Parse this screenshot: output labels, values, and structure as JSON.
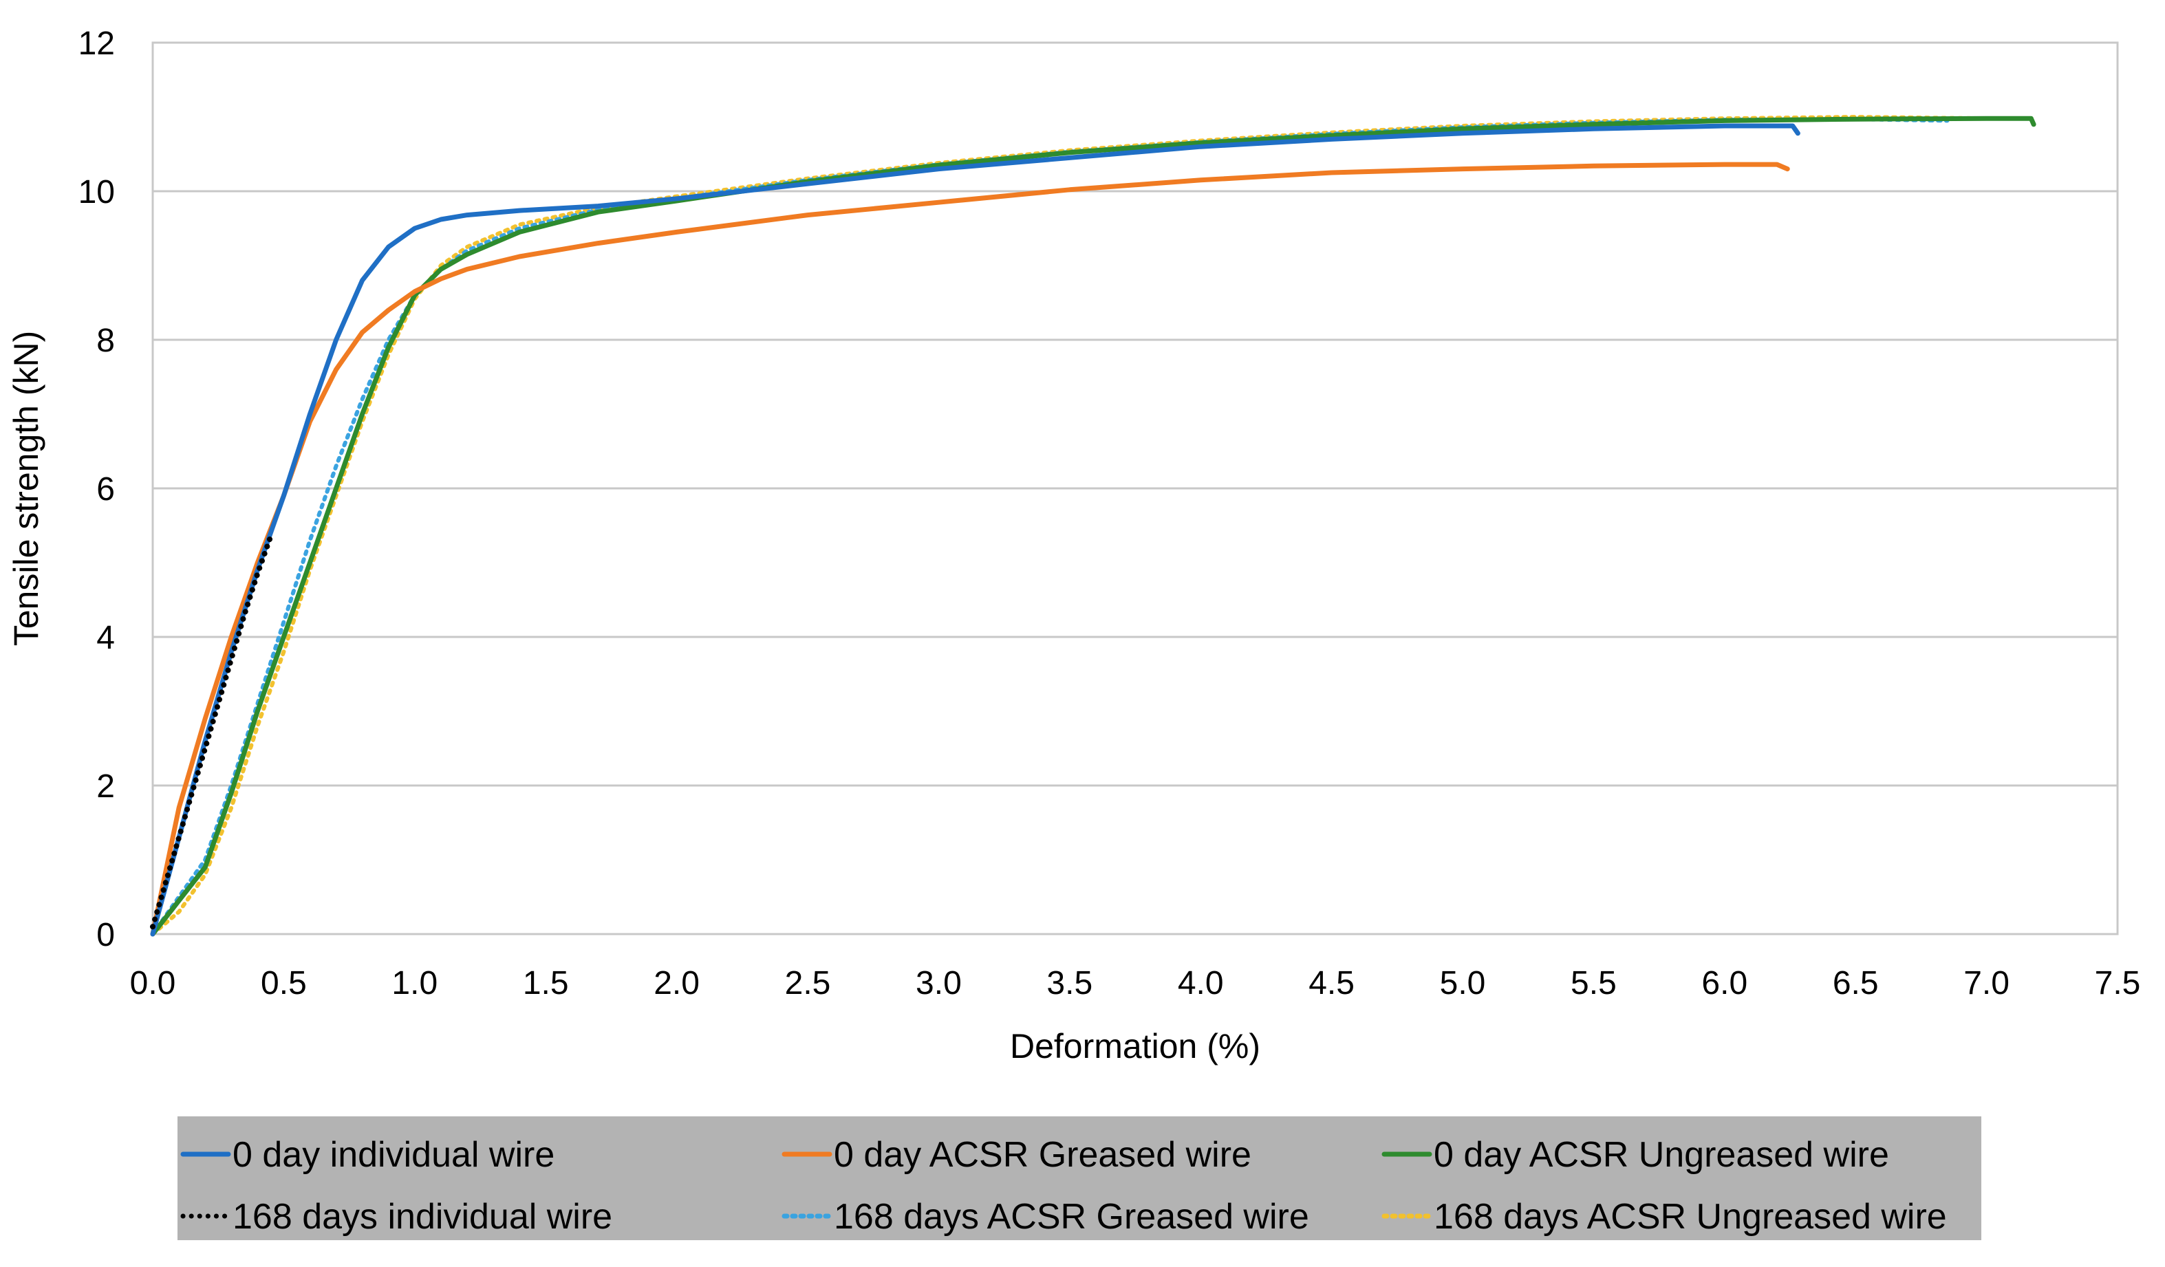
{
  "chart_data": {
    "type": "line",
    "title": "",
    "xlabel": "Deformation (%)",
    "ylabel": "Tensile strength (kN)",
    "xlim": [
      0,
      7.5
    ],
    "ylim": [
      0,
      12
    ],
    "xticks": [
      "0.0",
      "0.5",
      "1.0",
      "1.5",
      "2.0",
      "2.5",
      "3.0",
      "3.5",
      "4.0",
      "4.5",
      "5.0",
      "5.5",
      "6.0",
      "6.5",
      "7.0",
      "7.5"
    ],
    "yticks": [
      "0",
      "2",
      "4",
      "6",
      "8",
      "10",
      "12"
    ],
    "grid": "horizontal",
    "legend_position": "bottom",
    "series": [
      {
        "name": "0 day individual wire",
        "color": "#1f6fc5",
        "style": "solid",
        "x": [
          0,
          0.1,
          0.2,
          0.3,
          0.4,
          0.5,
          0.6,
          0.7,
          0.8,
          0.9,
          1.0,
          1.1,
          1.2,
          1.4,
          1.7,
          2.0,
          2.5,
          3.0,
          3.5,
          4.0,
          4.5,
          5.0,
          5.5,
          6.0,
          6.26,
          6.28
        ],
        "y": [
          0,
          1.3,
          2.6,
          3.8,
          4.9,
          5.9,
          7.0,
          8.0,
          8.8,
          9.25,
          9.5,
          9.62,
          9.68,
          9.74,
          9.8,
          9.9,
          10.1,
          10.3,
          10.45,
          10.6,
          10.7,
          10.78,
          10.84,
          10.88,
          10.88,
          10.78
        ]
      },
      {
        "name": "0 day ACSR Greased wire",
        "color": "#f07b22",
        "style": "solid",
        "x": [
          0,
          0.1,
          0.2,
          0.3,
          0.4,
          0.5,
          0.6,
          0.7,
          0.8,
          0.9,
          1.0,
          1.1,
          1.2,
          1.4,
          1.7,
          2.0,
          2.5,
          3.0,
          3.5,
          4.0,
          4.5,
          5.0,
          5.5,
          6.0,
          6.2,
          6.24
        ],
        "y": [
          0,
          1.7,
          2.9,
          4.0,
          5.0,
          5.9,
          6.9,
          7.6,
          8.1,
          8.4,
          8.65,
          8.82,
          8.95,
          9.12,
          9.3,
          9.45,
          9.68,
          9.85,
          10.02,
          10.15,
          10.25,
          10.3,
          10.34,
          10.36,
          10.36,
          10.3
        ]
      },
      {
        "name": "0 day ACSR Ungreased wire",
        "color": "#2e8b2e",
        "style": "solid",
        "x": [
          0,
          0.1,
          0.2,
          0.3,
          0.4,
          0.5,
          0.6,
          0.7,
          0.8,
          0.9,
          1.0,
          1.1,
          1.2,
          1.4,
          1.7,
          2.0,
          2.5,
          3.0,
          3.5,
          4.0,
          4.5,
          5.0,
          5.5,
          6.0,
          6.5,
          7.0,
          7.17,
          7.18
        ],
        "y": [
          0,
          0.45,
          0.9,
          1.9,
          3.0,
          4.0,
          5.0,
          6.0,
          7.0,
          7.9,
          8.6,
          8.95,
          9.15,
          9.45,
          9.72,
          9.87,
          10.13,
          10.35,
          10.52,
          10.65,
          10.75,
          10.84,
          10.9,
          10.95,
          10.97,
          10.98,
          10.98,
          10.9
        ]
      },
      {
        "name": "168 days individual wire",
        "color": "#000000",
        "style": "dotted",
        "x": [
          0,
          0.05,
          0.1,
          0.15,
          0.2,
          0.25,
          0.3,
          0.35,
          0.4,
          0.45
        ],
        "y": [
          0.1,
          0.7,
          1.3,
          1.9,
          2.5,
          3.1,
          3.7,
          4.3,
          4.85,
          5.35
        ]
      },
      {
        "name": "168 days ACSR Greased wire",
        "color": "#3aa3e0",
        "style": "dotted",
        "x": [
          0,
          0.1,
          0.2,
          0.3,
          0.4,
          0.5,
          0.6,
          0.7,
          0.8,
          0.9,
          1.0,
          1.1,
          1.2,
          1.4,
          1.7,
          2.0,
          2.5,
          3.0,
          3.5,
          4.0,
          4.5,
          5.0,
          5.5,
          6.0,
          6.5,
          6.85
        ],
        "y": [
          0,
          0.5,
          1.0,
          2.0,
          3.1,
          4.2,
          5.3,
          6.3,
          7.2,
          8.0,
          8.6,
          8.95,
          9.2,
          9.5,
          9.75,
          9.9,
          10.15,
          10.36,
          10.53,
          10.66,
          10.77,
          10.86,
          10.92,
          10.96,
          10.97,
          10.95
        ]
      },
      {
        "name": "168 days ACSR Ungreased wire",
        "color": "#f2c12e",
        "style": "dotted",
        "x": [
          0,
          0.1,
          0.2,
          0.3,
          0.4,
          0.5,
          0.6,
          0.7,
          0.8,
          0.9,
          1.0,
          1.1,
          1.2,
          1.4,
          1.7,
          2.0,
          2.5,
          3.0,
          3.5,
          4.0,
          4.5,
          5.0,
          5.5,
          6.0,
          6.5,
          7.0
        ],
        "y": [
          0,
          0.3,
          0.8,
          1.7,
          2.8,
          3.8,
          4.9,
          5.9,
          6.9,
          7.8,
          8.55,
          9.0,
          9.25,
          9.55,
          9.78,
          9.93,
          10.17,
          10.38,
          10.55,
          10.68,
          10.79,
          10.88,
          10.94,
          10.98,
          11.0,
          10.98
        ]
      }
    ]
  }
}
